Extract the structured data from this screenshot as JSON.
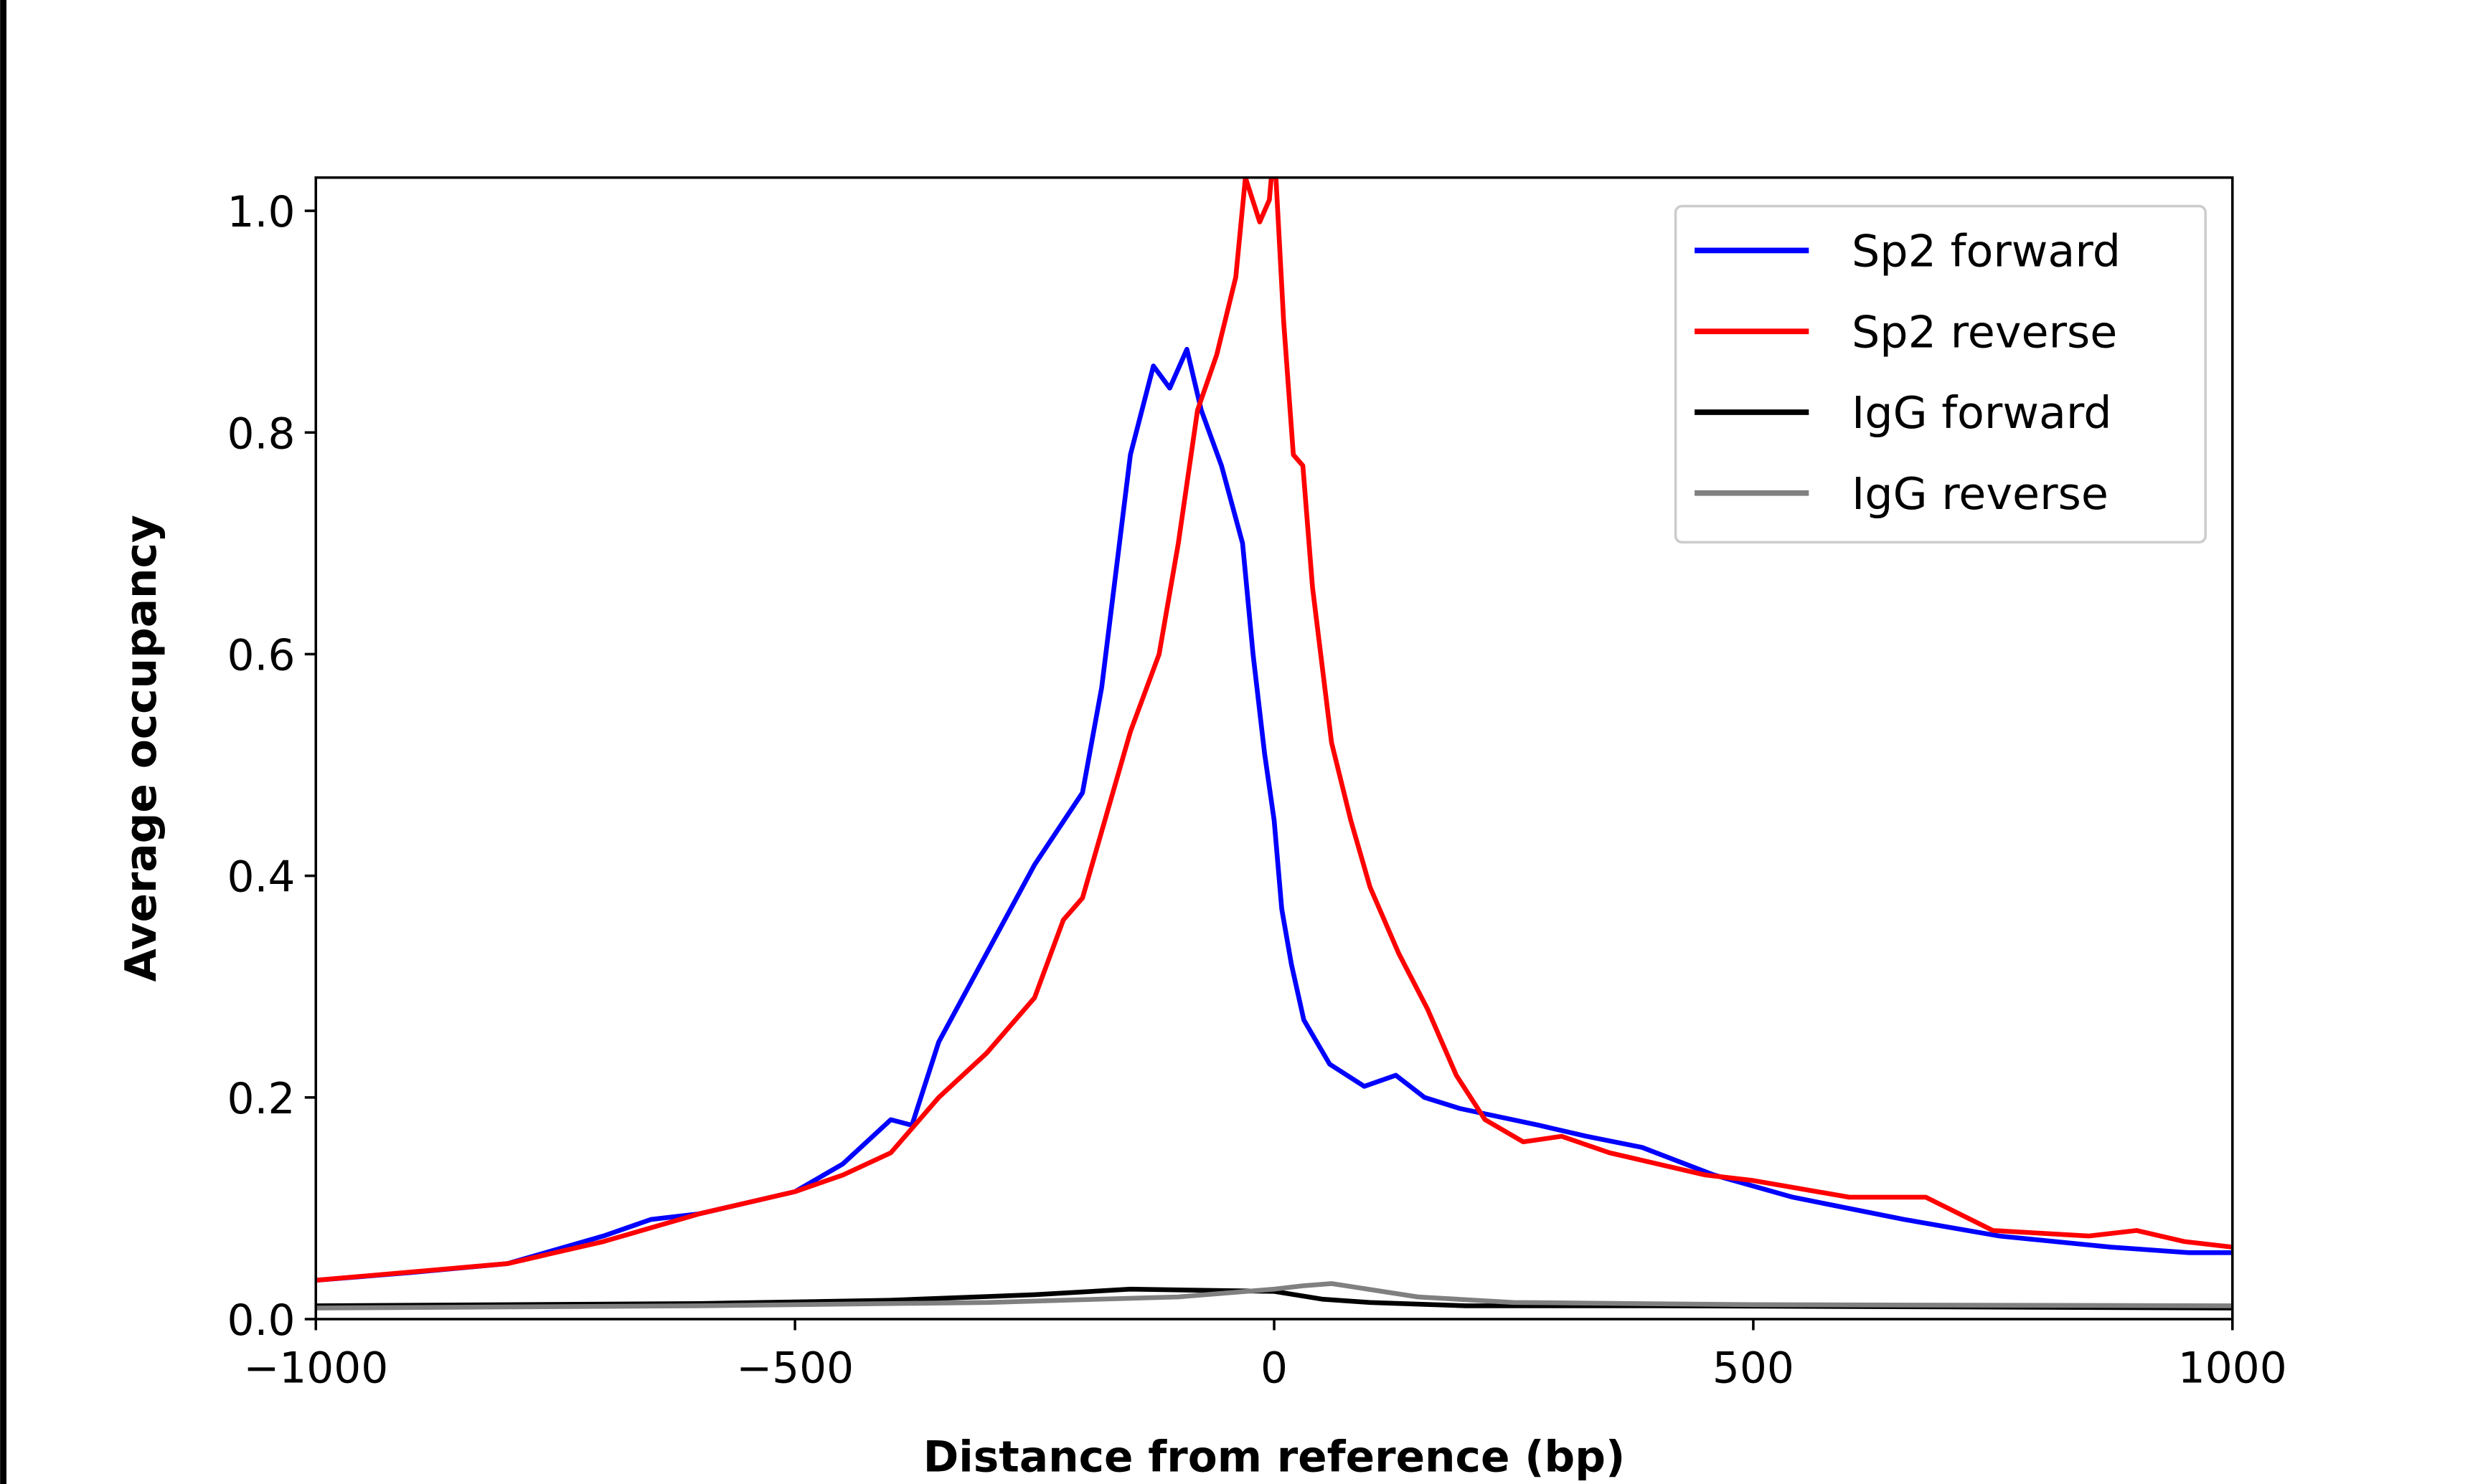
{
  "chart_data": {
    "type": "line",
    "title": "",
    "xlabel": "Distance from reference (bp)",
    "ylabel": "Average occupancy",
    "xlim": [
      -1000,
      1000
    ],
    "ylim": [
      0,
      1.03
    ],
    "xticks": [
      -1000,
      -500,
      0,
      500,
      1000
    ],
    "xtick_labels": [
      "−1000",
      "−500",
      "0",
      "500",
      "1000"
    ],
    "yticks": [
      0.0,
      0.2,
      0.4,
      0.6,
      0.8,
      1.0
    ],
    "ytick_labels": [
      "0.0",
      "0.2",
      "0.4",
      "0.6",
      "0.8",
      "1.0"
    ],
    "grid": false,
    "legend_position": "top-right",
    "series": [
      {
        "name": "Sp2 forward",
        "color": "#0000ff",
        "x": [
          -1000,
          -900,
          -800,
          -700,
          -650,
          -600,
          -550,
          -500,
          -450,
          -400,
          -378,
          -350,
          -300,
          -250,
          -200,
          -180,
          -150,
          -126,
          -109,
          -91,
          -76,
          -55,
          -33,
          -22,
          -10,
          0,
          8,
          18,
          31,
          58,
          94,
          127,
          157,
          194,
          276,
          326,
          384,
          459,
          541,
          657,
          757,
          873,
          955,
          1000
        ],
        "y": [
          0.035,
          0.042,
          0.05,
          0.075,
          0.09,
          0.095,
          0.105,
          0.115,
          0.14,
          0.18,
          0.175,
          0.25,
          0.33,
          0.41,
          0.475,
          0.57,
          0.78,
          0.86,
          0.84,
          0.875,
          0.82,
          0.77,
          0.7,
          0.6,
          0.51,
          0.45,
          0.37,
          0.32,
          0.27,
          0.23,
          0.21,
          0.22,
          0.2,
          0.19,
          0.175,
          0.165,
          0.155,
          0.13,
          0.11,
          0.09,
          0.075,
          0.065,
          0.06,
          0.06
        ]
      },
      {
        "name": "Sp2 reverse",
        "color": "#ff0000",
        "x": [
          -1000,
          -800,
          -700,
          -600,
          -500,
          -450,
          -400,
          -350,
          -300,
          -250,
          -220,
          -200,
          -180,
          -150,
          -120,
          -100,
          -80,
          -60,
          -40,
          -30,
          -15,
          -5,
          0,
          10,
          20,
          30,
          40,
          60,
          80,
          100,
          130,
          160,
          190,
          220,
          260,
          300,
          350,
          400,
          450,
          500,
          600,
          680,
          750,
          850,
          900,
          950,
          1000
        ],
        "y": [
          0.035,
          0.05,
          0.07,
          0.095,
          0.115,
          0.13,
          0.15,
          0.2,
          0.24,
          0.29,
          0.36,
          0.38,
          0.44,
          0.53,
          0.6,
          0.7,
          0.82,
          0.87,
          0.94,
          1.03,
          0.99,
          1.01,
          1.06,
          0.9,
          0.78,
          0.77,
          0.66,
          0.52,
          0.45,
          0.39,
          0.33,
          0.28,
          0.22,
          0.18,
          0.16,
          0.165,
          0.15,
          0.14,
          0.13,
          0.125,
          0.11,
          0.11,
          0.08,
          0.075,
          0.08,
          0.07,
          0.065
        ]
      },
      {
        "name": "IgG forward",
        "color": "#000000",
        "x": [
          -1000,
          -600,
          -400,
          -250,
          -150,
          -80,
          0,
          50,
          100,
          200,
          400,
          700,
          1000
        ],
        "y": [
          0.012,
          0.014,
          0.017,
          0.022,
          0.027,
          0.026,
          0.025,
          0.018,
          0.015,
          0.012,
          0.012,
          0.011,
          0.01
        ]
      },
      {
        "name": "IgG reverse",
        "color": "#808080",
        "x": [
          -1000,
          -600,
          -300,
          -100,
          0,
          30,
          60,
          90,
          150,
          250,
          500,
          1000
        ],
        "y": [
          0.01,
          0.012,
          0.015,
          0.02,
          0.027,
          0.03,
          0.032,
          0.028,
          0.02,
          0.015,
          0.013,
          0.012
        ]
      }
    ]
  }
}
